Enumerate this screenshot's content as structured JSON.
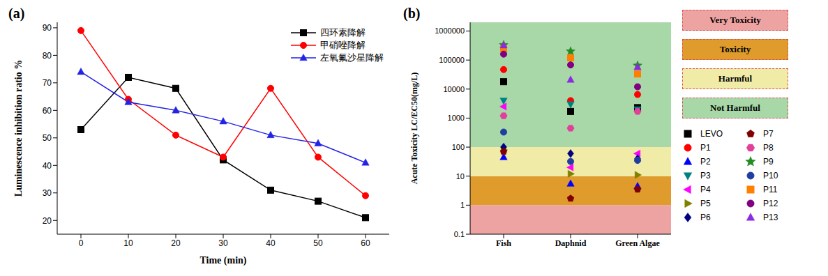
{
  "chart_data": [
    {
      "type": "line",
      "panel_label": "(a)",
      "x_label": "Time (min)",
      "y_label": "Luminescence inhibition ratio %",
      "x": [
        0,
        10,
        20,
        30,
        40,
        50,
        60
      ],
      "xlim": [
        -5,
        65
      ],
      "xticks": [
        0,
        10,
        20,
        30,
        40,
        50,
        60
      ],
      "ylim": [
        15,
        92
      ],
      "yticks": [
        20,
        30,
        40,
        50,
        60,
        70,
        80,
        90
      ],
      "legend": "upper right",
      "series": [
        {
          "name": "四环素降解",
          "color": "#000000",
          "marker": "square",
          "values": [
            53,
            72,
            68,
            42,
            31,
            27,
            21
          ]
        },
        {
          "name": "甲硝唑降解",
          "color": "#ff0000",
          "marker": "circle",
          "values": [
            89,
            64,
            51,
            43,
            68,
            43,
            29
          ]
        },
        {
          "name": "左氧氟沙星降解",
          "color": "#2323e6",
          "marker": "triangle-up",
          "values": [
            74,
            63,
            60,
            56,
            51,
            48,
            41
          ]
        }
      ]
    },
    {
      "type": "scatter",
      "panel_label": "(b)",
      "y_label": "Acute Toxicity LC/EC50(mg/L)",
      "categories": [
        "Fish",
        "Daphnid",
        "Green Algae"
      ],
      "log": "y",
      "ylim": [
        0.1,
        2000000
      ],
      "yticks": [
        0.1,
        1,
        10,
        100,
        1000,
        10000,
        100000,
        1000000
      ],
      "legend": "right",
      "bands": [
        {
          "label": "Very Toxicity",
          "from": 0.1,
          "to": 1,
          "color": "#eea3a3"
        },
        {
          "label": "Toxicity",
          "from": 1,
          "to": 10,
          "color": "#df9c2c"
        },
        {
          "label": "Harmful",
          "from": 10,
          "to": 100,
          "color": "#f0eba7"
        },
        {
          "label": "Not Harmful",
          "from": 100,
          "to": 2000000,
          "color": "#a8d8a8"
        }
      ],
      "series": [
        {
          "name": "LEVO",
          "color": "#000000",
          "marker": "square",
          "values": [
            18000,
            1700,
            2300
          ]
        },
        {
          "name": "P1",
          "color": "#ff0000",
          "marker": "circle",
          "values": [
            47000,
            4000,
            6500
          ]
        },
        {
          "name": "P2",
          "color": "#0000ff",
          "marker": "triangle-up",
          "values": [
            45,
            5.5,
            4.5
          ]
        },
        {
          "name": "P3",
          "color": "#008080",
          "marker": "triangle-down",
          "values": [
            4000,
            3000,
            2000
          ]
        },
        {
          "name": "P4",
          "color": "#ff00ff",
          "marker": "triangle-left",
          "values": [
            2500,
            20,
            60
          ]
        },
        {
          "name": "P5",
          "color": "#808000",
          "marker": "triangle-right",
          "values": [
            80,
            12,
            11
          ]
        },
        {
          "name": "P6",
          "color": "#000080",
          "marker": "diamond",
          "values": [
            100,
            60,
            40
          ]
        },
        {
          "name": "P7",
          "color": "#800000",
          "marker": "pentagon",
          "values": [
            70,
            1.7,
            3.5
          ]
        },
        {
          "name": "P8",
          "color": "#e0409a",
          "marker": "hexagon",
          "values": [
            1200,
            450,
            1700
          ]
        },
        {
          "name": "P9",
          "color": "#228b22",
          "marker": "star",
          "values": [
            330000,
            200000,
            65000
          ]
        },
        {
          "name": "P10",
          "color": "#1f3fa0",
          "marker": "circle",
          "values": [
            330,
            32,
            35
          ]
        },
        {
          "name": "P11",
          "color": "#ff8000",
          "marker": "square",
          "values": [
            250000,
            120000,
            33000
          ]
        },
        {
          "name": "P12",
          "color": "#800080",
          "marker": "circle",
          "values": [
            160000,
            68000,
            12000
          ]
        },
        {
          "name": "P13",
          "color": "#8a2be2",
          "marker": "triangle-up",
          "values": [
            320000,
            21000,
            57000
          ]
        }
      ]
    }
  ]
}
